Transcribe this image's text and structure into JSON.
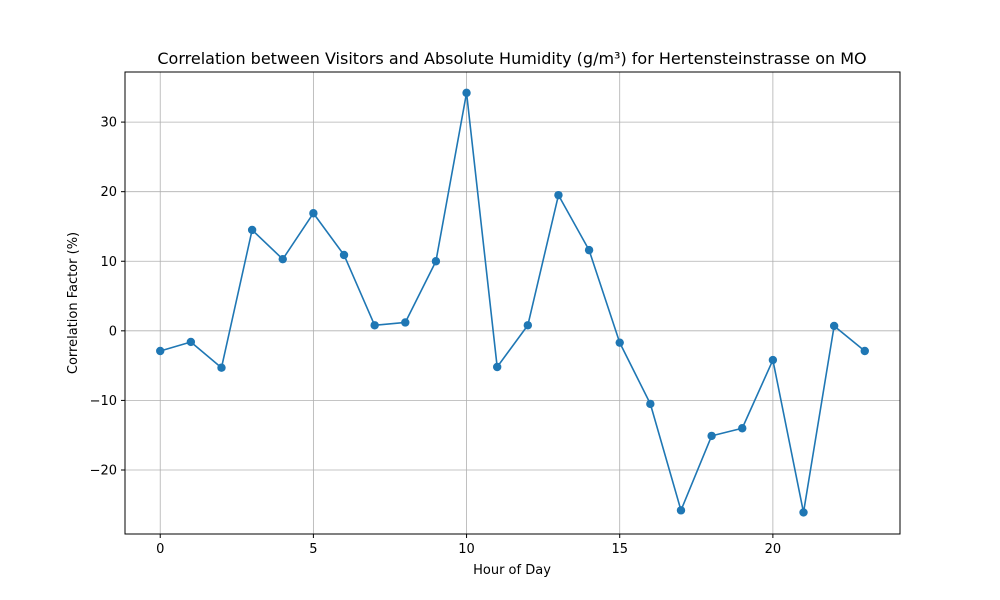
{
  "chart_data": {
    "type": "line",
    "title": "Correlation between Visitors and Absolute Humidity (g/m³) for Hertensteinstrasse on MO",
    "xlabel": "Hour of Day",
    "ylabel": "Correlation Factor (%)",
    "xlim": [
      -1.15,
      24.15
    ],
    "ylim": [
      -29.2,
      37.2
    ],
    "xticks": [
      0,
      5,
      10,
      15,
      20
    ],
    "yticks": [
      -20,
      -10,
      0,
      10,
      20,
      30
    ],
    "xtick_labels": [
      "0",
      "5",
      "10",
      "15",
      "20"
    ],
    "ytick_labels": [
      "−20",
      "−10",
      "0",
      "10",
      "20",
      "30"
    ],
    "grid": true,
    "marker": "circle",
    "color": "#1f77b4",
    "x": [
      0,
      1,
      2,
      3,
      4,
      5,
      6,
      7,
      8,
      9,
      10,
      11,
      12,
      13,
      14,
      15,
      16,
      17,
      18,
      19,
      20,
      21,
      22,
      23
    ],
    "y": [
      -2.9,
      -1.6,
      -5.3,
      14.5,
      10.3,
      16.9,
      10.9,
      0.8,
      1.2,
      10.0,
      34.2,
      -5.2,
      0.8,
      19.5,
      11.6,
      -1.7,
      -10.5,
      -25.8,
      -15.1,
      -14.0,
      -4.2,
      -26.1,
      0.7,
      -2.9
    ]
  }
}
